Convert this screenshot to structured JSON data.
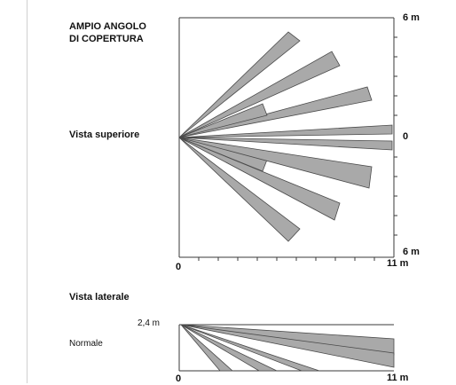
{
  "top_view": {
    "heading_line1": "AMPIO ANGOLO",
    "heading_line2": "DI COPERTURA",
    "view_label": "Vista superiore",
    "axis": {
      "y_top_label": "6 m",
      "y_mid_label": "0",
      "y_bottom_label": "6 m",
      "x_start_label": "0",
      "x_end_label": "11 m"
    }
  },
  "side_view": {
    "view_label": "Vista laterale",
    "mode_label": "Normale",
    "axis": {
      "height_label": "2,4 m",
      "x_start_label": "0",
      "x_end_label": "11 m"
    }
  },
  "colors": {
    "beam_fill": "#a9a9a9",
    "beam_stroke": "#4a4a4a",
    "axis": "#3a3a3a"
  }
}
